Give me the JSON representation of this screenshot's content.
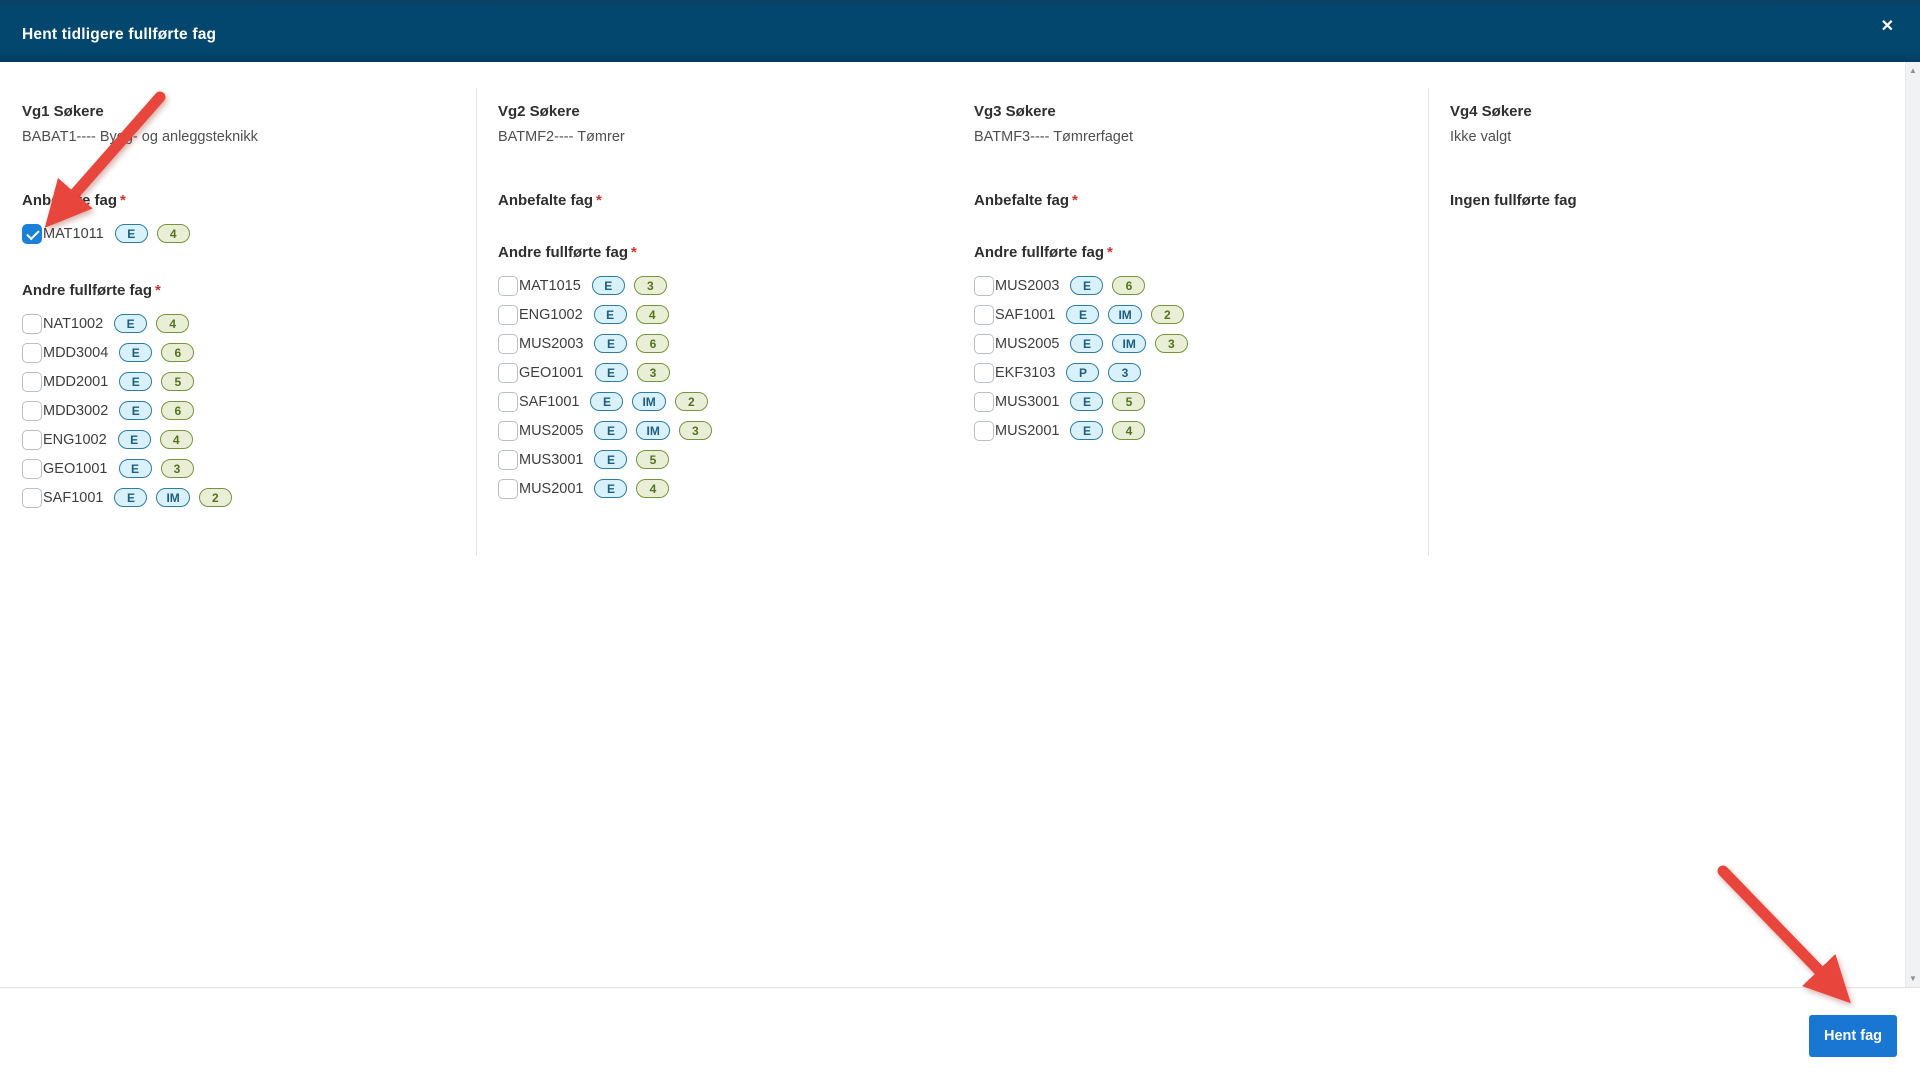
{
  "modal": {
    "title": "Hent tidligere fullførte fag"
  },
  "icons": {
    "close": "✕",
    "scroll_up": "▲",
    "scroll_down": "▼"
  },
  "strings": {
    "required_marker": "*"
  },
  "columns": [
    {
      "heading": "Vg1 Søkere",
      "subtitle": "BABAT1---- Bygg- og anleggsteknikk",
      "divider": false,
      "sections": [
        {
          "label": "Anbefalte fag",
          "required": true,
          "items": [
            {
              "code": "MAT1011",
              "checked": true,
              "badges": [
                {
                  "text": "E",
                  "color": "blue"
                },
                {
                  "text": "4",
                  "color": "green"
                }
              ]
            }
          ]
        },
        {
          "label": "Andre fullførte fag",
          "required": true,
          "items": [
            {
              "code": "NAT1002",
              "checked": false,
              "badges": [
                {
                  "text": "E",
                  "color": "blue"
                },
                {
                  "text": "4",
                  "color": "green"
                }
              ]
            },
            {
              "code": "MDD3004",
              "checked": false,
              "badges": [
                {
                  "text": "E",
                  "color": "blue"
                },
                {
                  "text": "6",
                  "color": "green"
                }
              ]
            },
            {
              "code": "MDD2001",
              "checked": false,
              "badges": [
                {
                  "text": "E",
                  "color": "blue"
                },
                {
                  "text": "5",
                  "color": "green"
                }
              ]
            },
            {
              "code": "MDD3002",
              "checked": false,
              "badges": [
                {
                  "text": "E",
                  "color": "blue"
                },
                {
                  "text": "6",
                  "color": "green"
                }
              ]
            },
            {
              "code": "ENG1002",
              "checked": false,
              "badges": [
                {
                  "text": "E",
                  "color": "blue"
                },
                {
                  "text": "4",
                  "color": "green"
                }
              ]
            },
            {
              "code": "GEO1001",
              "checked": false,
              "badges": [
                {
                  "text": "E",
                  "color": "blue"
                },
                {
                  "text": "3",
                  "color": "green"
                }
              ]
            },
            {
              "code": "SAF1001",
              "checked": false,
              "badges": [
                {
                  "text": "E",
                  "color": "blue"
                },
                {
                  "text": "IM",
                  "color": "blue"
                },
                {
                  "text": "2",
                  "color": "green"
                }
              ]
            }
          ]
        }
      ]
    },
    {
      "heading": "Vg2 Søkere",
      "subtitle": "BATMF2---- Tømrer",
      "divider": true,
      "sections": [
        {
          "label": "Anbefalte fag",
          "required": true,
          "items": []
        },
        {
          "label": "Andre fullførte fag",
          "required": true,
          "items": [
            {
              "code": "MAT1015",
              "checked": false,
              "badges": [
                {
                  "text": "E",
                  "color": "blue"
                },
                {
                  "text": "3",
                  "color": "green"
                }
              ]
            },
            {
              "code": "ENG1002",
              "checked": false,
              "badges": [
                {
                  "text": "E",
                  "color": "blue"
                },
                {
                  "text": "4",
                  "color": "green"
                }
              ]
            },
            {
              "code": "MUS2003",
              "checked": false,
              "badges": [
                {
                  "text": "E",
                  "color": "blue"
                },
                {
                  "text": "6",
                  "color": "green"
                }
              ]
            },
            {
              "code": "GEO1001",
              "checked": false,
              "badges": [
                {
                  "text": "E",
                  "color": "blue"
                },
                {
                  "text": "3",
                  "color": "green"
                }
              ]
            },
            {
              "code": "SAF1001",
              "checked": false,
              "badges": [
                {
                  "text": "E",
                  "color": "blue"
                },
                {
                  "text": "IM",
                  "color": "blue"
                },
                {
                  "text": "2",
                  "color": "green"
                }
              ]
            },
            {
              "code": "MUS2005",
              "checked": false,
              "badges": [
                {
                  "text": "E",
                  "color": "blue"
                },
                {
                  "text": "IM",
                  "color": "blue"
                },
                {
                  "text": "3",
                  "color": "green"
                }
              ]
            },
            {
              "code": "MUS3001",
              "checked": false,
              "badges": [
                {
                  "text": "E",
                  "color": "blue"
                },
                {
                  "text": "5",
                  "color": "green"
                }
              ]
            },
            {
              "code": "MUS2001",
              "checked": false,
              "badges": [
                {
                  "text": "E",
                  "color": "blue"
                },
                {
                  "text": "4",
                  "color": "green"
                }
              ]
            }
          ]
        }
      ]
    },
    {
      "heading": "Vg3 Søkere",
      "subtitle": "BATMF3---- Tømrerfaget",
      "divider": false,
      "sections": [
        {
          "label": "Anbefalte fag",
          "required": true,
          "items": []
        },
        {
          "label": "Andre fullførte fag",
          "required": true,
          "items": [
            {
              "code": "MUS2003",
              "checked": false,
              "badges": [
                {
                  "text": "E",
                  "color": "blue"
                },
                {
                  "text": "6",
                  "color": "green"
                }
              ]
            },
            {
              "code": "SAF1001",
              "checked": false,
              "badges": [
                {
                  "text": "E",
                  "color": "blue"
                },
                {
                  "text": "IM",
                  "color": "blue"
                },
                {
                  "text": "2",
                  "color": "green"
                }
              ]
            },
            {
              "code": "MUS2005",
              "checked": false,
              "badges": [
                {
                  "text": "E",
                  "color": "blue"
                },
                {
                  "text": "IM",
                  "color": "blue"
                },
                {
                  "text": "3",
                  "color": "green"
                }
              ]
            },
            {
              "code": "EKF3103",
              "checked": false,
              "badges": [
                {
                  "text": "P",
                  "color": "blue"
                },
                {
                  "text": "3",
                  "color": "blue"
                }
              ]
            },
            {
              "code": "MUS3001",
              "checked": false,
              "badges": [
                {
                  "text": "E",
                  "color": "blue"
                },
                {
                  "text": "5",
                  "color": "green"
                }
              ]
            },
            {
              "code": "MUS2001",
              "checked": false,
              "badges": [
                {
                  "text": "E",
                  "color": "blue"
                },
                {
                  "text": "4",
                  "color": "green"
                }
              ]
            }
          ]
        }
      ]
    },
    {
      "heading": "Vg4 Søkere",
      "subtitle": "Ikke valgt",
      "divider": true,
      "empty_text": "Ingen fullførte fag"
    }
  ],
  "footer": {
    "submit_label": "Hent fag"
  },
  "colors": {
    "header_bg": "#03466e",
    "button_bg": "#1976d2",
    "annotation_arrow": "#e8463c",
    "checkbox_checked": "#1a80d8",
    "required_marker": "#cc342e",
    "badge_blue_bg": "#d9f1fb",
    "badge_blue_border": "#2d7ca4",
    "badge_green_bg": "#e9efd6",
    "badge_green_border": "#75953c"
  }
}
